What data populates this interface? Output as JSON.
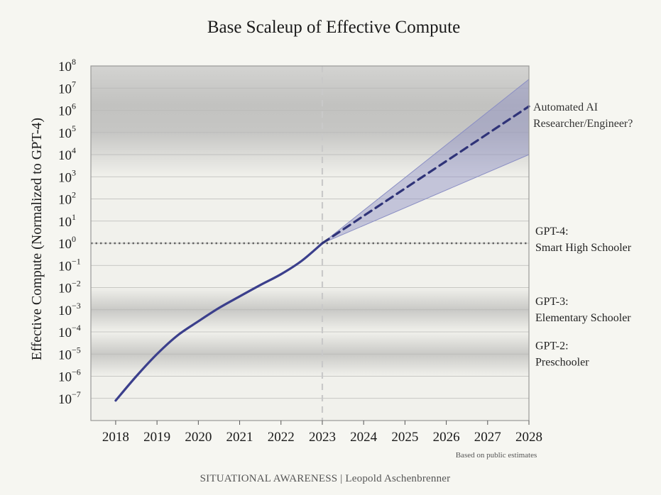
{
  "chart_data": {
    "type": "line",
    "title": "Base Scaleup of Effective Compute",
    "xlabel": "",
    "ylabel": "Effective Compute (Normalized to GPT-4)",
    "y_scale": "log",
    "xlim": [
      2017.4,
      2028
    ],
    "ylim_exponent": [
      -8,
      8
    ],
    "x_ticks": [
      "2018",
      "2019",
      "2020",
      "2021",
      "2022",
      "2023",
      "2024",
      "2025",
      "2026",
      "2027",
      "2028"
    ],
    "y_ticks": [
      {
        "base": "10",
        "exp": "8",
        "value": 100000000.0
      },
      {
        "base": "10",
        "exp": "7",
        "value": 10000000.0
      },
      {
        "base": "10",
        "exp": "6",
        "value": 1000000.0
      },
      {
        "base": "10",
        "exp": "5",
        "value": 100000.0
      },
      {
        "base": "10",
        "exp": "4",
        "value": 10000.0
      },
      {
        "base": "10",
        "exp": "3",
        "value": 1000.0
      },
      {
        "base": "10",
        "exp": "2",
        "value": 100.0
      },
      {
        "base": "10",
        "exp": "1",
        "value": 10.0
      },
      {
        "base": "10",
        "exp": "0",
        "value": 1
      },
      {
        "base": "10",
        "exp": "−1",
        "value": 0.1
      },
      {
        "base": "10",
        "exp": "−2",
        "value": 0.01
      },
      {
        "base": "10",
        "exp": "−3",
        "value": 0.001
      },
      {
        "base": "10",
        "exp": "−4",
        "value": 0.0001
      },
      {
        "base": "10",
        "exp": "−5",
        "value": 1e-05
      },
      {
        "base": "10",
        "exp": "−6",
        "value": 1e-06
      },
      {
        "base": "10",
        "exp": "−7",
        "value": 1e-07
      }
    ],
    "series": [
      {
        "style": "solid",
        "color": "#3b3f8c",
        "points": [
          {
            "x": 2018.0,
            "y": 8e-08
          },
          {
            "x": 2018.5,
            "y": 1e-06
          },
          {
            "x": 2019.0,
            "y": 1e-05
          },
          {
            "x": 2019.5,
            "y": 7e-05
          },
          {
            "x": 2020.0,
            "y": 0.0003
          },
          {
            "x": 2020.5,
            "y": 0.0012
          },
          {
            "x": 2021.0,
            "y": 0.004
          },
          {
            "x": 2021.5,
            "y": 0.013
          },
          {
            "x": 2022.0,
            "y": 0.04
          },
          {
            "x": 2022.5,
            "y": 0.16
          },
          {
            "x": 2023.0,
            "y": 1
          }
        ]
      },
      {
        "style": "dashed",
        "color": "#2f3378",
        "points": [
          {
            "x": 2023.0,
            "y": 1
          },
          {
            "x": 2028.0,
            "y": 1500000.0
          }
        ]
      }
    ],
    "range_band": {
      "color": "#8b8fc4",
      "x": [
        2023.0,
        2028.0
      ],
      "upper": [
        1,
        25000000.0
      ],
      "lower": [
        1,
        10000.0
      ]
    },
    "reference_lines": [
      {
        "axis": "y",
        "value": 1,
        "style": "dotted",
        "color": "#666666"
      },
      {
        "axis": "x",
        "value": 2023,
        "style": "dashed",
        "color": "#c9c9c9"
      }
    ],
    "shaded_bands": [
      {
        "y_from": 1000.0,
        "y_to": 100000000.0,
        "label": "Automated AI Researcher/Engineer?"
      },
      {
        "y_from": 0.0001,
        "y_to": 0.01,
        "label": "GPT-3: Elementary Schooler"
      },
      {
        "y_from": 1e-06,
        "y_to": 0.0001,
        "label": "GPT-2: Preschooler"
      }
    ],
    "annotations": [
      {
        "id": "ai_researcher",
        "lines": [
          "Automated AI",
          "Researcher/Engineer?"
        ]
      },
      {
        "id": "gpt4",
        "lines": [
          "GPT-4:",
          "Smart High Schooler"
        ]
      },
      {
        "id": "gpt3",
        "lines": [
          "GPT-3:",
          "Elementary Schooler"
        ]
      },
      {
        "id": "gpt2",
        "lines": [
          "GPT-2:",
          "Preschooler"
        ]
      }
    ],
    "note": "Based on public estimates",
    "grid": true
  },
  "footer": "SITUATIONAL AWARENESS | Leopold Aschenbrenner"
}
